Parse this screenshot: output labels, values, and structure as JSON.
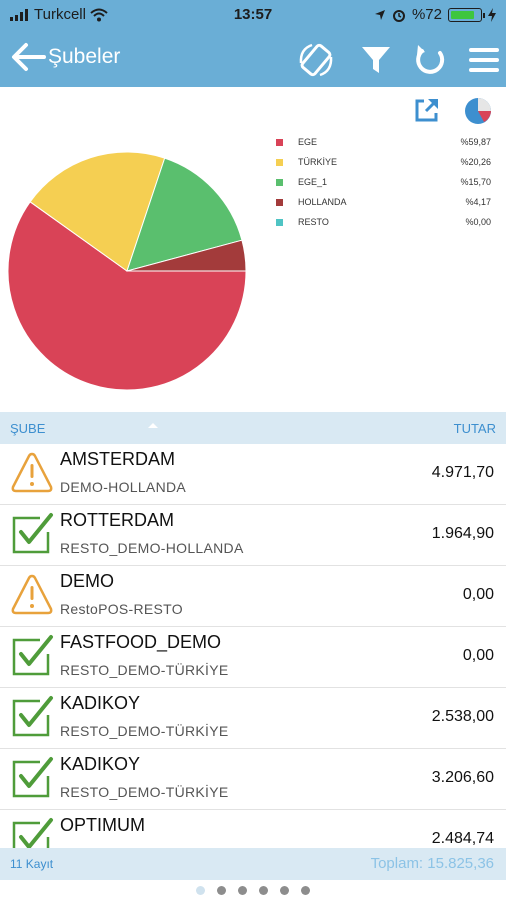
{
  "status_bar": {
    "carrier": "Turkcell",
    "time": "13:57",
    "battery": "%72"
  },
  "navbar": {
    "title": "Şubeler",
    "icons": [
      "back-arrow-icon",
      "rotate-device-icon",
      "filter-icon",
      "refresh-icon",
      "menu-icon"
    ]
  },
  "chart_data": {
    "type": "pie",
    "categories": [
      "EGE",
      "TÜRKİYE",
      "EGE_1",
      "HOLLANDA",
      "RESTO"
    ],
    "values": [
      59.87,
      20.26,
      15.7,
      4.17,
      0.0
    ],
    "value_labels": [
      "%59,87",
      "%20,26",
      "%15,70",
      "%4,17",
      "%0,00"
    ],
    "colors": [
      "#d94357",
      "#f5cf52",
      "#5abf6e",
      "#a33b3b",
      "#4fc4c4"
    ],
    "legend": "right"
  },
  "chart_actions": {
    "icons": [
      "export-icon",
      "chart-type-icon"
    ]
  },
  "list_header": {
    "left": "ŞUBE",
    "right": "TUTAR"
  },
  "rows": [
    {
      "name": "AMSTERDAM",
      "sub": "DEMO-HOLLANDA",
      "amount": "4.971,70",
      "status": "warning"
    },
    {
      "name": "ROTTERDAM",
      "sub": "RESTO_DEMO-HOLLANDA",
      "amount": "1.964,90",
      "status": "ok"
    },
    {
      "name": "DEMO",
      "sub": "RestoPOS-RESTO",
      "amount": "0,00",
      "status": "warning"
    },
    {
      "name": "FASTFOOD_DEMO",
      "sub": "RESTO_DEMO-TÜRKİYE",
      "amount": "0,00",
      "status": "ok"
    },
    {
      "name": "KADIKOY",
      "sub": "RESTO_DEMO-TÜRKİYE",
      "amount": "2.538,00",
      "status": "ok"
    },
    {
      "name": "KADIKOY",
      "sub": "RESTO_DEMO-TÜRKİYE",
      "amount": "3.206,60",
      "status": "ok"
    },
    {
      "name": "OPTIMUM",
      "sub": "",
      "amount": "2.484,74",
      "status": "ok"
    }
  ],
  "footer": {
    "count": "11 Kayıt",
    "total": "Toplam: 15.825,36"
  },
  "pager": {
    "pages": 6,
    "current": 1
  }
}
